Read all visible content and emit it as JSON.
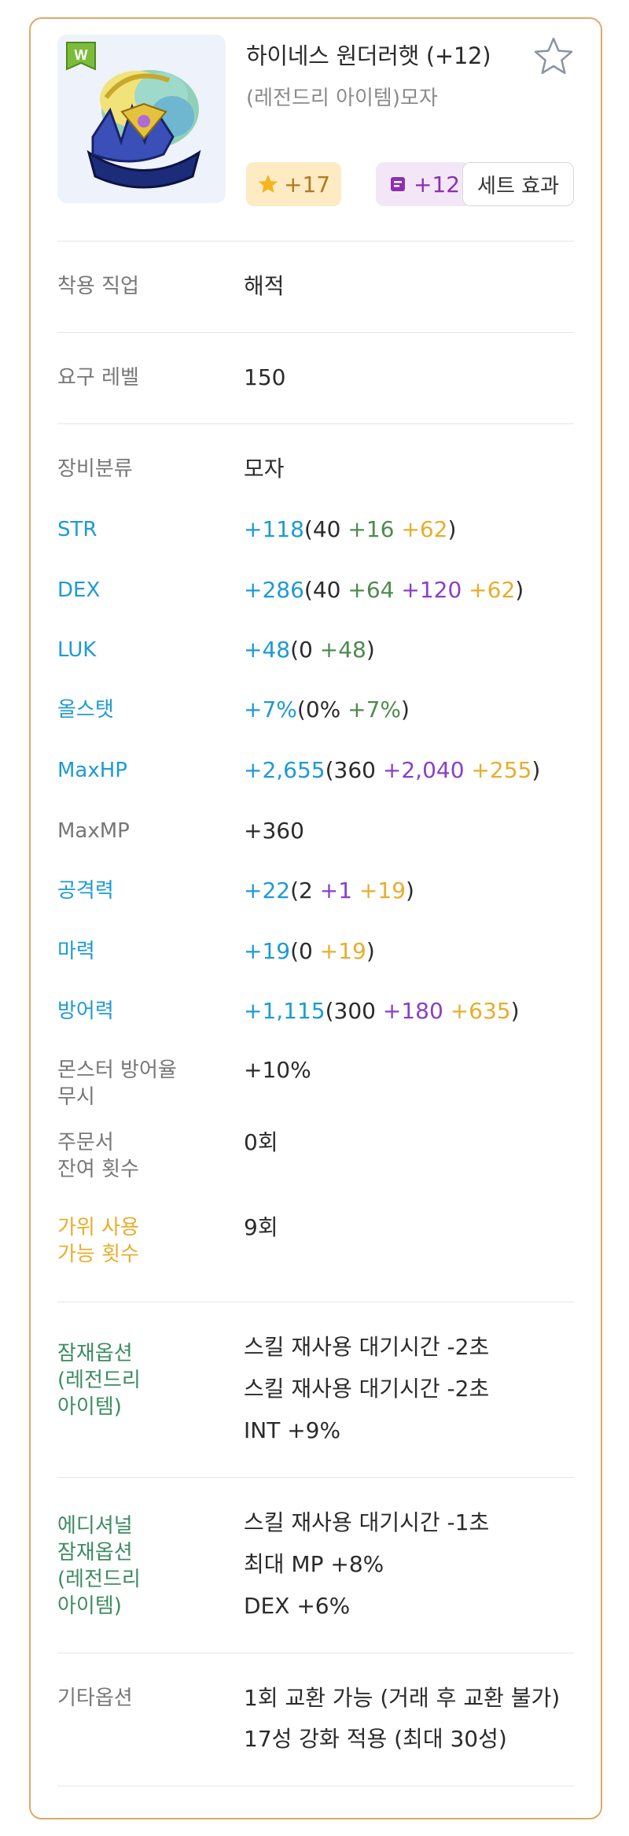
{
  "item": {
    "name": "하이네스 원더러햇 (+12)",
    "subtitle": "(레전드리 아이템)모자",
    "star_chip": "+17",
    "scroll_chip": "+12",
    "set_effect_label": "세트 효과",
    "badge_letter": "W"
  },
  "requirements": {
    "job_label": "착용 직업",
    "job_value": "해적",
    "level_label": "요구 레벨",
    "level_value": "150"
  },
  "stats": {
    "category_label": "장비분류",
    "category_value": "모자",
    "str_label": "STR",
    "str_total": "+118",
    "str_open": "(40 ",
    "str_scroll": "+16",
    "str_star": " +62",
    "str_close": ")",
    "dex_label": "DEX",
    "dex_total": "+286",
    "dex_open": "(40 ",
    "dex_scroll": "+64",
    "dex_extra": " +120",
    "dex_star": " +62",
    "dex_close": ")",
    "luk_label": "LUK",
    "luk_total": "+48",
    "luk_open": "(0 ",
    "luk_scroll": "+48",
    "luk_close": ")",
    "allstat_label": "올스탯",
    "allstat_total": "+7%",
    "allstat_open": "(0% ",
    "allstat_scroll": "+7%",
    "allstat_close": ")",
    "maxhp_label": "MaxHP",
    "maxhp_total": "+2,655",
    "maxhp_open": "(360 ",
    "maxhp_extra": "+2,040",
    "maxhp_star": " +255",
    "maxhp_close": ")",
    "maxmp_label": "MaxMP",
    "maxmp_value": "+360",
    "atk_label": "공격력",
    "atk_total": "+22",
    "atk_open": "(2 ",
    "atk_extra": "+1",
    "atk_star": " +19",
    "atk_close": ")",
    "matk_label": "마력",
    "matk_total": "+19",
    "matk_open": "(0 ",
    "matk_star": "+19",
    "matk_close": ")",
    "def_label": "방어력",
    "def_total": "+1,115",
    "def_open": "(300 ",
    "def_extra": "+180",
    "def_star": " +635",
    "def_close": ")",
    "ignore_def_label_1": "몬스터 방어율",
    "ignore_def_label_2": "무시",
    "ignore_def_value": "+10%",
    "scroll_left_label_1": "주문서",
    "scroll_left_label_2": "잔여 횟수",
    "scroll_left_value": "0회",
    "scissors_label_1": "가위 사용",
    "scissors_label_2": "가능 횟수",
    "scissors_value": "9회"
  },
  "potential": {
    "label_1": "잠재옵션",
    "label_2": "(레전드리",
    "label_3": "아이템)",
    "lines": [
      "스킬 재사용 대기시간 -2초",
      "스킬 재사용 대기시간 -2초",
      "INT +9%"
    ]
  },
  "additional_potential": {
    "label_1": "에디셔널",
    "label_2": "잠재옵션",
    "label_3": "(레전드리",
    "label_4": "아이템)",
    "lines": [
      "스킬 재사용 대기시간 -1초",
      "최대 MP +8%",
      "DEX +6%"
    ]
  },
  "other": {
    "label": "기타옵션",
    "line_1": "1회 교환 가능 (거래 후 교환 불가)",
    "line_2": "17성 강화 적용 (최대 30성)"
  },
  "colors": {
    "card_border": "#e0a86a",
    "stat_blue": "#1e9ad6",
    "scroll_green": "#4f8a4f",
    "extra_purple": "#8a3fc7",
    "star_gold": "#e7ae2c"
  }
}
